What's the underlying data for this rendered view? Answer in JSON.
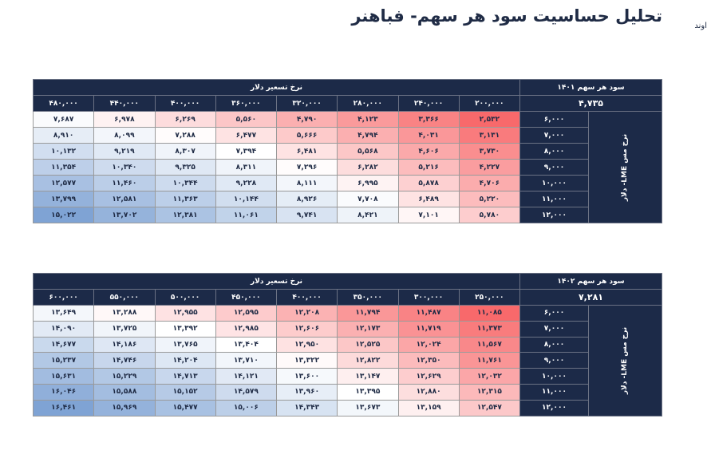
{
  "header": {
    "title": "تحلیل حساسیت سود هر سهم- فباهنر",
    "logo_text": "اوند"
  },
  "tables": [
    {
      "eps_label": "سود هر سهم ۱۴۰۱",
      "eps_value": "۴,۷۳۵",
      "col_group_label": "نرخ تسعیر دلار",
      "row_group_label": "نرخ مس LME- دلار",
      "columns": [
        "۲۰۰,۰۰۰",
        "۲۴۰,۰۰۰",
        "۲۸۰,۰۰۰",
        "۳۲۰,۰۰۰",
        "۳۶۰,۰۰۰",
        "۴۰۰,۰۰۰",
        "۴۴۰,۰۰۰",
        "۴۸۰,۰۰۰"
      ],
      "rows": [
        {
          "label": "۶,۰۰۰",
          "values": [
            "۲,۵۳۲",
            "۳,۳۶۶",
            "۴,۱۲۳",
            "۴,۷۹۰",
            "۵,۵۶۰",
            "۶,۲۶۹",
            "۶,۹۷۸",
            "۷,۶۸۷"
          ]
        },
        {
          "label": "۷,۰۰۰",
          "values": [
            "۳,۱۳۱",
            "۴,۰۳۱",
            "۴,۷۹۴",
            "۵,۶۶۶",
            "۶,۴۷۷",
            "۷,۲۸۸",
            "۸,۰۹۹",
            "۸,۹۱۰"
          ]
        },
        {
          "label": "۸,۰۰۰",
          "values": [
            "۳,۷۳۰",
            "۴,۶۰۶",
            "۵,۵۶۸",
            "۶,۴۸۱",
            "۷,۳۹۴",
            "۸,۳۰۷",
            "۹,۲۱۹",
            "۱۰,۱۳۲"
          ]
        },
        {
          "label": "۹,۰۰۰",
          "values": [
            "۴,۲۲۷",
            "۵,۲۱۶",
            "۶,۲۸۲",
            "۷,۲۹۶",
            "۸,۳۱۱",
            "۹,۳۲۵",
            "۱۰,۳۴۰",
            "۱۱,۳۵۴"
          ]
        },
        {
          "label": "۱۰,۰۰۰",
          "values": [
            "۴,۷۰۶",
            "۵,۸۷۸",
            "۶,۹۹۵",
            "۸,۱۱۱",
            "۹,۲۲۸",
            "۱۰,۳۴۴",
            "۱۱,۴۶۰",
            "۱۲,۵۷۷"
          ]
        },
        {
          "label": "۱۱,۰۰۰",
          "values": [
            "۵,۲۲۰",
            "۶,۴۸۹",
            "۷,۷۰۸",
            "۸,۹۲۶",
            "۱۰,۱۴۴",
            "۱۱,۳۶۳",
            "۱۲,۵۸۱",
            "۱۳,۷۹۹"
          ]
        },
        {
          "label": "۱۲,۰۰۰",
          "values": [
            "۵,۷۸۰",
            "۷,۱۰۱",
            "۸,۴۲۱",
            "۹,۷۴۱",
            "۱۱,۰۶۱",
            "۱۲,۳۸۱",
            "۱۳,۷۰۲",
            "۱۵,۰۲۲"
          ]
        }
      ]
    },
    {
      "eps_label": "سود هر سهم ۱۴۰۲",
      "eps_value": "۷,۲۸۱",
      "col_group_label": "نرخ تسعیر دلار",
      "row_group_label": "نرخ مس LME- دلار",
      "columns": [
        "۲۵۰,۰۰۰",
        "۳۰۰,۰۰۰",
        "۳۵۰,۰۰۰",
        "۴۰۰,۰۰۰",
        "۴۵۰,۰۰۰",
        "۵۰۰,۰۰۰",
        "۵۵۰,۰۰۰",
        "۶۰۰,۰۰۰"
      ],
      "rows": [
        {
          "label": "۶,۰۰۰",
          "values": [
            "۱۱,۰۸۵",
            "۱۱,۴۸۷",
            "۱۱,۷۹۴",
            "۱۲,۲۰۸",
            "۱۲,۵۹۵",
            "۱۲,۹۵۵",
            "۱۳,۲۸۸",
            "۱۳,۶۴۹"
          ]
        },
        {
          "label": "۷,۰۰۰",
          "values": [
            "۱۱,۳۷۳",
            "۱۱,۷۱۹",
            "۱۲,۱۷۳",
            "۱۲,۶۰۶",
            "۱۲,۹۸۵",
            "۱۳,۳۹۲",
            "۱۳,۷۲۵",
            "۱۴,۰۹۰"
          ]
        },
        {
          "label": "۸,۰۰۰",
          "values": [
            "۱۱,۵۶۷",
            "۱۲,۰۲۴",
            "۱۲,۵۲۵",
            "۱۲,۹۵۰",
            "۱۳,۴۰۴",
            "۱۳,۷۶۵",
            "۱۴,۱۸۶",
            "۱۴,۶۷۷"
          ]
        },
        {
          "label": "۹,۰۰۰",
          "values": [
            "۱۱,۷۶۱",
            "۱۲,۳۵۰",
            "۱۲,۸۲۲",
            "۱۳,۳۲۲",
            "۱۳,۷۱۰",
            "۱۴,۲۰۴",
            "۱۴,۷۴۶",
            "۱۵,۲۳۷"
          ]
        },
        {
          "label": "۱۰,۰۰۰",
          "values": [
            "۱۲,۰۳۲",
            "۱۲,۶۲۹",
            "۱۳,۱۴۷",
            "۱۳,۶۰۰",
            "۱۴,۱۲۱",
            "۱۴,۷۱۳",
            "۱۵,۲۲۹",
            "۱۵,۶۳۱"
          ]
        },
        {
          "label": "۱۱,۰۰۰",
          "values": [
            "۱۲,۳۱۵",
            "۱۲,۸۸۰",
            "۱۳,۳۹۵",
            "۱۳,۹۶۰",
            "۱۴,۵۷۹",
            "۱۵,۱۵۲",
            "۱۵,۵۸۸",
            "۱۶,۰۴۶"
          ]
        },
        {
          "label": "۱۲,۰۰۰",
          "values": [
            "۱۲,۵۴۷",
            "۱۳,۱۵۹",
            "۱۳,۶۷۳",
            "۱۴,۳۴۳",
            "۱۵,۰۰۶",
            "۱۵,۴۷۷",
            "۱۵,۹۶۹",
            "۱۶,۴۶۱"
          ]
        }
      ]
    }
  ],
  "colors": {
    "header_bg": "#1c2a48",
    "low": "#f8696b",
    "mid": "#ffffff",
    "high": "#7fa3d4"
  }
}
